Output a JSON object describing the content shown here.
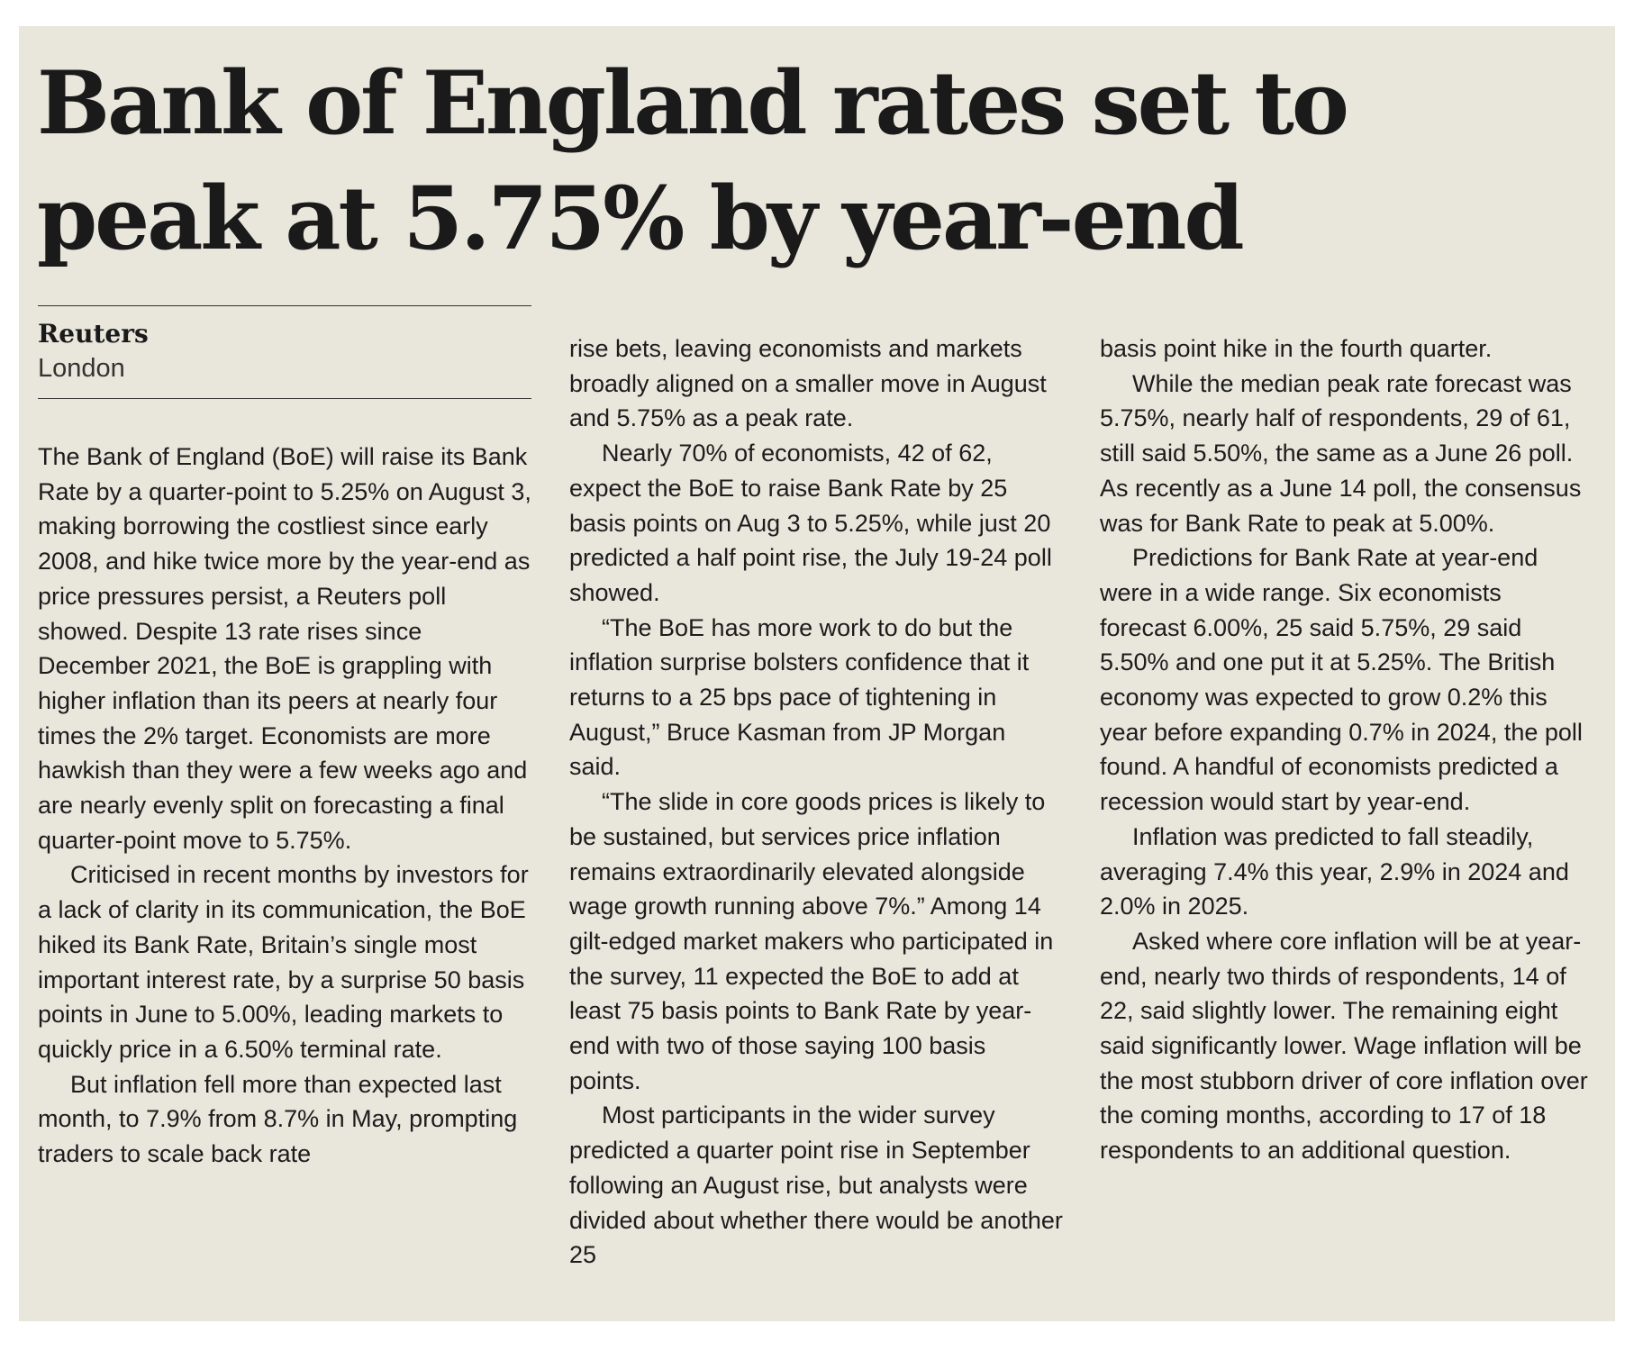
{
  "article": {
    "headline_line1": "Bank of England rates set to",
    "headline_line2": "peak at 5.75% by year-end",
    "byline_agency": "Reuters",
    "byline_city": "London",
    "paragraphs": [
      "The Bank of England (BoE) will raise its Bank Rate by a quarter-point to 5.25% on August 3, making borrowing the costliest since early 2008, and hike twice more by the year-end as price pressures persist, a Reuters poll showed. Despite 13 rate rises since December 2021, the BoE is grappling with higher inflation than its peers at nearly four times the 2% target. Economists are more hawkish than they were a few weeks ago and are nearly evenly split on forecasting a final quarter-point move to 5.75%.",
      "Criticised in recent months by investors for a lack of clarity in its communication, the BoE hiked its Bank Rate, Britain’s single most important interest rate, by a surprise 50 basis points in June to 5.00%, leading markets to quickly price in a 6.50% terminal rate.",
      "But inflation fell more than expected last month, to 7.9% from 8.7% in May, prompting traders to scale back rate",
      "rise bets, leaving economists and markets broadly aligned on a smaller move in August and 5.75% as a peak rate.",
      "Nearly 70% of economists, 42 of 62, expect the BoE to raise Bank Rate by 25 basis points on Aug 3 to 5.25%, while just 20 predicted a half point rise, the July 19-24 poll showed.",
      "“The BoE has more work to do but the inflation surprise bolsters confidence that it returns to a 25 bps pace of tightening in August,” Bruce Kasman from JP Morgan said.",
      "“The slide in core goods prices is likely to be sustained, but services price inflation remains extraordinarily elevated alongside wage growth running above 7%.” Among 14 gilt-edged market makers who participated in the survey, 11 expected the BoE to add at least 75 basis points to Bank Rate by year-end with two of those saying 100 basis points.",
      "Most participants in the wider survey predicted a quarter point rise in September following an August rise, but analysts were divided about whether there would be another 25",
      "basis point hike in the fourth quarter.",
      "While the median peak rate forecast was 5.75%, nearly half of respondents, 29 of 61, still said 5.50%, the same as a June 26 poll. As recently as a June 14 poll, the consensus was for Bank Rate to peak at 5.00%.",
      "Predictions for Bank Rate at year-end were in a wide range. Six economists forecast 6.00%, 25 said 5.75%, 29 said 5.50% and one put it at 5.25%. The British economy was expected to grow 0.2% this year before expanding 0.7% in 2024, the poll found. A handful of economists predicted a recession would start by year-end.",
      "Inflation was predicted to fall steadily, averaging 7.4% this year, 2.9% in 2024 and 2.0% in 2025.",
      "Asked where core inflation will be at year-end, nearly two thirds of respondents, 14 of 22, said slightly lower. The remaining eight said significantly lower. Wage inflation will be the most stubborn driver of core inflation over the coming months, according to 17 of 18 respondents to an additional question."
    ]
  }
}
